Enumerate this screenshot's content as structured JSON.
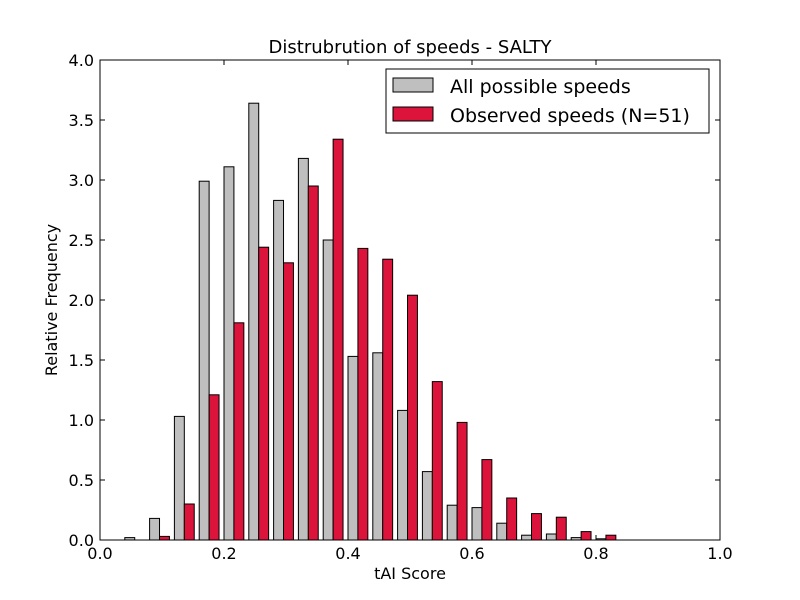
{
  "chart_data": {
    "type": "bar",
    "title": "Distrubrution of speeds - SALTY",
    "xlabel": "tAI Score",
    "ylabel": "Relative Frequency",
    "xlim": [
      0.0,
      1.0
    ],
    "ylim": [
      0.0,
      4.0
    ],
    "xticks": [
      "0.0",
      "0.2",
      "0.4",
      "0.6",
      "0.8",
      "1.0"
    ],
    "yticks": [
      "0.0",
      "0.5",
      "1.0",
      "1.5",
      "2.0",
      "2.5",
      "3.0",
      "3.5",
      "4.0"
    ],
    "legend_position": "top-right",
    "bin_width": 0.04,
    "x": [
      0.06,
      0.1,
      0.14,
      0.18,
      0.22,
      0.26,
      0.3,
      0.34,
      0.38,
      0.42,
      0.46,
      0.5,
      0.54,
      0.58,
      0.62,
      0.66,
      0.7,
      0.74,
      0.78,
      0.82,
      0.86,
      0.9,
      0.94,
      0.98
    ],
    "series": [
      {
        "name": "All possible speeds",
        "color": "#bfbfbf",
        "values": [
          0.02,
          0.18,
          1.03,
          2.99,
          3.11,
          3.64,
          2.83,
          3.18,
          2.5,
          1.53,
          1.56,
          1.08,
          0.57,
          0.29,
          0.27,
          0.14,
          0.04,
          0.05,
          0.02,
          0.01,
          0.0,
          0.0,
          0.0,
          0.0
        ]
      },
      {
        "name": "Observed speeds (N=51)",
        "color": "#dc143c",
        "values": [
          0.0,
          0.03,
          0.3,
          1.21,
          1.81,
          2.44,
          2.31,
          2.95,
          3.34,
          2.43,
          2.34,
          2.04,
          1.32,
          0.98,
          0.67,
          0.35,
          0.22,
          0.19,
          0.07,
          0.04,
          0.0,
          0.0,
          0.0,
          0.0
        ]
      }
    ]
  }
}
